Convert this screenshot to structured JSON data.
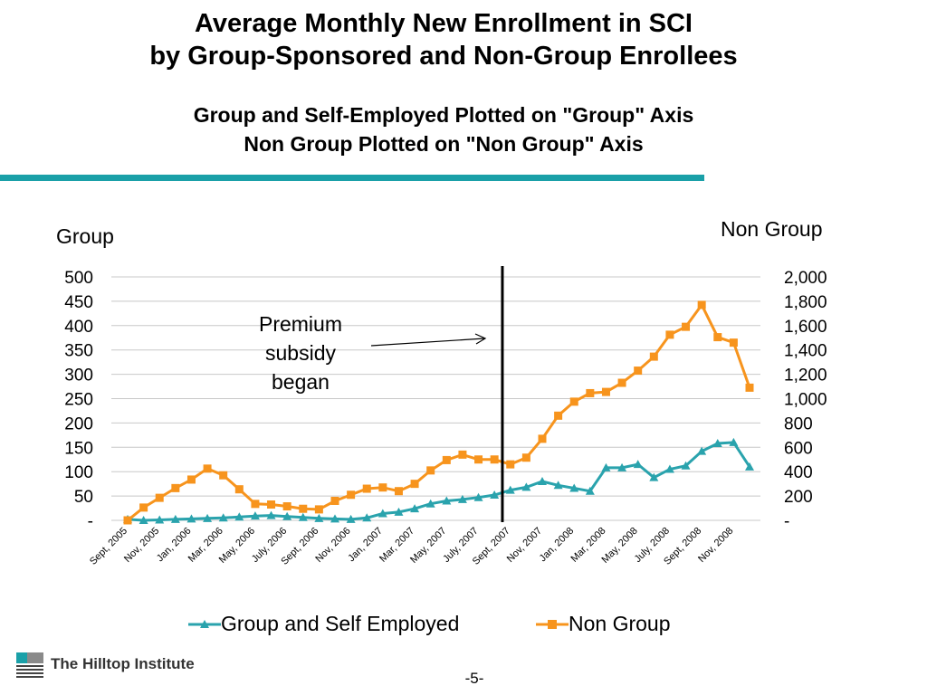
{
  "title": {
    "line1": "Average Monthly New Enrollment in SCI",
    "line2": "by Group-Sponsored and Non-Group Enrollees"
  },
  "subtitle": {
    "line1": "Group and Self-Employed Plotted on \"Group\" Axis",
    "line2": "Non Group Plotted on \"Non Group\" Axis"
  },
  "annotation": {
    "line1": "Premium",
    "line2": "subsidy",
    "line3": "began"
  },
  "logo_text": "The Hilltop Institute",
  "page_number": "-5-",
  "chart_data": {
    "type": "line",
    "x": [
      "Sept, 2005",
      "Oct, 2005",
      "Nov, 2005",
      "Dec, 2005",
      "Jan, 2006",
      "Feb, 2006",
      "Mar, 2006",
      "Apr, 2006",
      "May, 2006",
      "June, 2006",
      "July, 2006",
      "Aug, 2006",
      "Sept, 2006",
      "Oct, 2006",
      "Nov, 2006",
      "Dec, 2006",
      "Jan, 2007",
      "Feb, 2007",
      "Mar, 2007",
      "Apr, 2007",
      "May, 2007",
      "June, 2007",
      "July, 2007",
      "Aug, 2007",
      "Sept, 2007",
      "Oct, 2007",
      "Nov, 2007",
      "Dec, 2007",
      "Jan, 2008",
      "Feb, 2008",
      "Mar, 2008",
      "Apr, 2008",
      "May, 2008",
      "June, 2008",
      "July, 2008",
      "Aug, 2008",
      "Sept, 2008",
      "Oct, 2008",
      "Nov, 2008",
      "Dec, 2008"
    ],
    "tick_labels": [
      "Sept, 2005",
      "Nov, 2005",
      "Jan, 2006",
      "Mar, 2006",
      "May, 2006",
      "July, 2006",
      "Sept, 2006",
      "Nov, 2006",
      "Jan, 2007",
      "Mar, 2007",
      "May, 2007",
      "July, 2007",
      "Sept, 2007",
      "Nov, 2007",
      "Jan, 2008",
      "Mar, 2008",
      "May, 2008",
      "July, 2008",
      "Sept, 2008",
      "Nov, 2008"
    ],
    "left_axis": {
      "label": "Group",
      "range": [
        0,
        500
      ],
      "ticks": [
        "500",
        "450",
        "400",
        "350",
        "300",
        "250",
        "200",
        "150",
        "100",
        "50",
        "-"
      ]
    },
    "right_axis": {
      "label": "Non Group",
      "range": [
        0,
        2000
      ],
      "ticks": [
        "2,000",
        "1,800",
        "1,600",
        "1,400",
        "1,200",
        "1,000",
        "800",
        "600",
        "400",
        "200",
        "-"
      ]
    },
    "series": [
      {
        "name": "Group and Self Employed",
        "axis": "left",
        "color": "#2aa3ad",
        "marker": "triangle",
        "values": [
          2,
          0,
          1,
          2,
          3,
          4,
          5,
          7,
          9,
          10,
          8,
          6,
          4,
          3,
          2,
          5,
          14,
          17,
          24,
          34,
          40,
          43,
          47,
          52,
          62,
          68,
          80,
          72,
          66,
          60,
          108,
          108,
          115,
          88,
          105,
          112,
          142,
          158,
          160,
          110
        ]
      },
      {
        "name": "Non Group",
        "axis": "right",
        "color": "#f7941d",
        "marker": "square",
        "values": [
          0,
          105,
          185,
          265,
          335,
          425,
          370,
          255,
          135,
          130,
          115,
          95,
          90,
          160,
          210,
          260,
          270,
          240,
          300,
          410,
          495,
          540,
          500,
          500,
          460,
          515,
          670,
          860,
          975,
          1045,
          1055,
          1130,
          1230,
          1345,
          1525,
          1590,
          1770,
          1505,
          1460,
          1090
        ]
      }
    ],
    "vertical_marker_after": "Aug, 2007",
    "grid": "horizontal",
    "legend_position": "bottom"
  }
}
